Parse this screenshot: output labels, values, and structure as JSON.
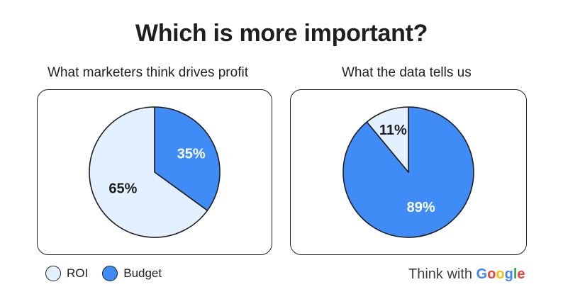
{
  "title": "Which is more important?",
  "chart_data": [
    {
      "type": "pie",
      "title": "What marketers think drives profit",
      "slices": [
        {
          "label": "ROI",
          "value": 65,
          "display": "65%",
          "color": "#e3f0ff"
        },
        {
          "label": "Budget",
          "value": 35,
          "display": "35%",
          "color": "#3f8cf6"
        }
      ]
    },
    {
      "type": "pie",
      "title": "What the data tells us",
      "slices": [
        {
          "label": "ROI",
          "value": 11,
          "display": "11%",
          "color": "#e3f0ff"
        },
        {
          "label": "Budget",
          "value": 89,
          "display": "89%",
          "color": "#3f8cf6"
        }
      ]
    }
  ],
  "legend": [
    {
      "label": "ROI",
      "color": "#e3f0ff"
    },
    {
      "label": "Budget",
      "color": "#3f8cf6"
    }
  ],
  "brand": {
    "prefix": "Think with ",
    "letters": [
      {
        "char": "G",
        "color": "#4285F4"
      },
      {
        "char": "o",
        "color": "#EA4335"
      },
      {
        "char": "o",
        "color": "#FBBC05"
      },
      {
        "char": "g",
        "color": "#4285F4"
      },
      {
        "char": "l",
        "color": "#34A853"
      },
      {
        "char": "e",
        "color": "#EA4335"
      }
    ]
  }
}
